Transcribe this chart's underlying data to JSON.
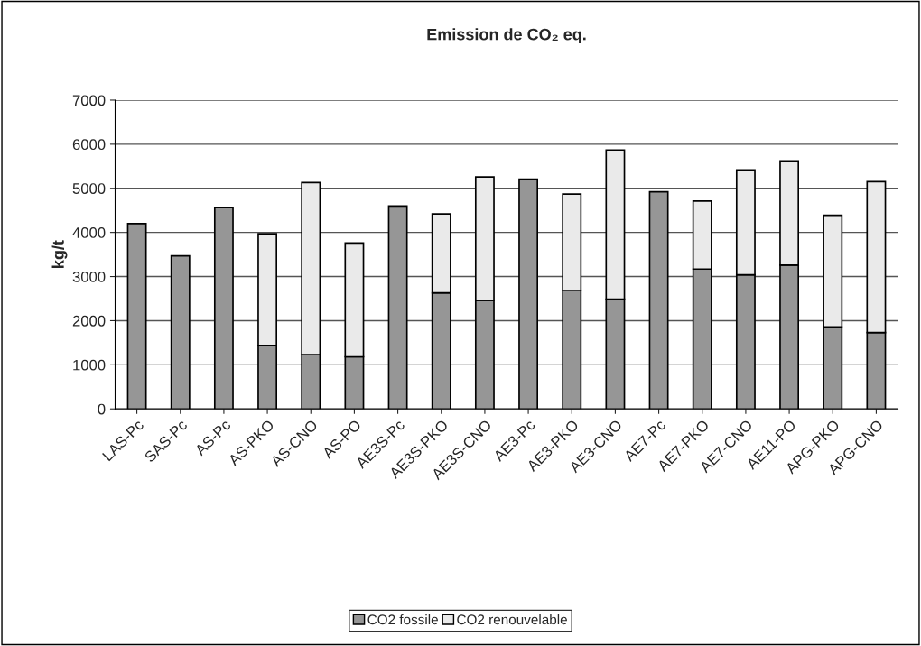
{
  "chart_data": {
    "type": "bar",
    "title": "Emission de CO₂ eq.",
    "ylabel": "kg/t",
    "categories": [
      "LAS-Pc",
      "SAS-Pc",
      "AS-Pc",
      "AS-PKO",
      "AS-CNO",
      "AS-PO",
      "AE3S-Pc",
      "AE3S-PKO",
      "AE3S-CNO",
      "AE3-Pc",
      "AE3-PKO",
      "AE3-CNO",
      "AE7-Pc",
      "AE7-PKO",
      "AE7-CNO",
      "AE11-PO",
      "APG-PKO",
      "APG-CNO"
    ],
    "series": [
      {
        "name": "CO2 fossile",
        "color": "#969696",
        "values": [
          4200,
          3470,
          4570,
          1440,
          1230,
          1180,
          4600,
          2630,
          2460,
          5210,
          2680,
          2490,
          4920,
          3170,
          3040,
          3260,
          1860,
          1730
        ]
      },
      {
        "name": "CO2 renouvelable",
        "color": "#eaeaea",
        "values": [
          null,
          null,
          null,
          2530,
          3900,
          2580,
          null,
          1790,
          2800,
          null,
          2190,
          3380,
          null,
          1540,
          2380,
          2360,
          2530,
          3420
        ]
      }
    ],
    "stacked": true,
    "ylim": [
      0,
      7000
    ],
    "yticks": [
      0,
      1000,
      2000,
      3000,
      4000,
      5000,
      6000,
      7000
    ],
    "grid": "y",
    "legend": "bottom"
  }
}
